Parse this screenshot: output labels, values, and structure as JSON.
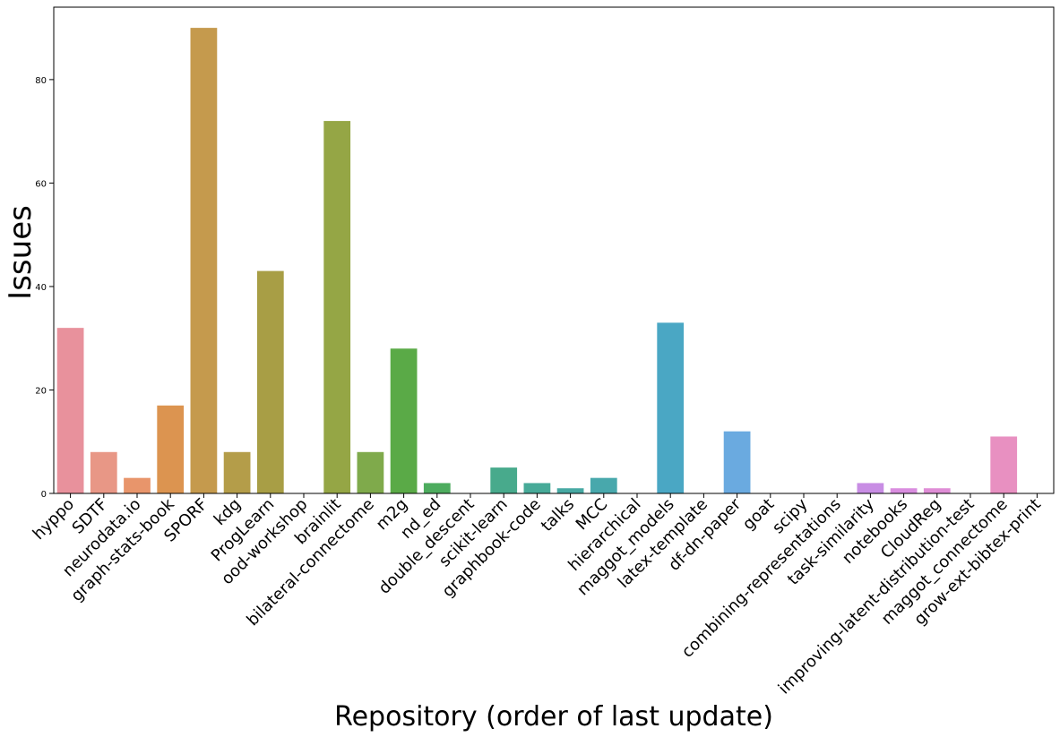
{
  "chart_data": {
    "type": "bar",
    "xlabel": "Repository (order of last update)",
    "ylabel": "Issues",
    "ylim": [
      0,
      94
    ],
    "yticks": [
      0,
      20,
      40,
      60,
      80
    ],
    "grid": false,
    "categories": [
      "hyppo",
      "SDTF",
      "neurodata.io",
      "graph-stats-book",
      "SPORF",
      "kdg",
      "ProgLearn",
      "ood-workshop",
      "brainlit",
      "bilateral-connectome",
      "m2g",
      "nd_ed",
      "double_descent",
      "scikit-learn",
      "graphbook-code",
      "talks",
      "MCC",
      "hierarchical",
      "maggot_models",
      "latex-template",
      "df-dn-paper",
      "goat",
      "scipy",
      "combining-representations",
      "task-similarity",
      "notebooks",
      "CloudReg",
      "improving-latent-distribution-test",
      "maggot_connectome",
      "grow-ext-bibtex-print"
    ],
    "values": [
      32,
      8,
      3,
      17,
      90,
      8,
      43,
      0,
      72,
      8,
      28,
      2,
      0,
      5,
      2,
      1,
      3,
      0,
      33,
      0,
      12,
      0,
      0,
      0,
      2,
      1,
      1,
      0,
      11,
      0
    ],
    "colors": [
      "#e8919c",
      "#e89786",
      "#e8956b",
      "#dc9450",
      "#c59a4d",
      "#b49d49",
      "#a89e45",
      "#9fa141",
      "#95a645",
      "#7faa4b",
      "#5aaa47",
      "#4dac5e",
      "#4aab7b",
      "#48aa8c",
      "#47aa98",
      "#47a9a3",
      "#48a8ac",
      "#49a8b7",
      "#4aa7c4",
      "#5aa6d4",
      "#6aaae0",
      "#869fe0",
      "#9a95e0",
      "#b08ce0",
      "#c88de4",
      "#d98ddf",
      "#df8dd6",
      "#e68dcb",
      "#e890c1",
      "#e892b1"
    ]
  }
}
